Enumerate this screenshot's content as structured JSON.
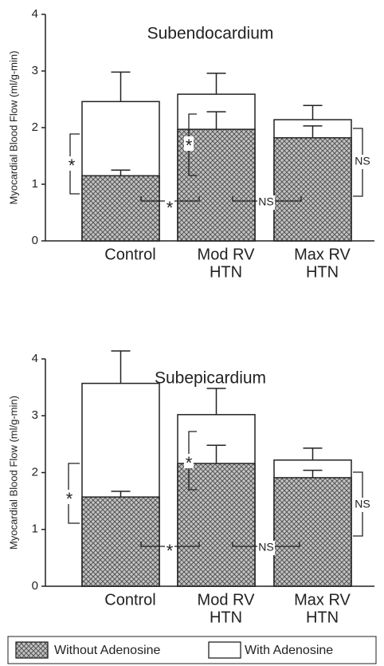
{
  "chart_data": [
    {
      "type": "overlap-bar",
      "title": "Subendocardium",
      "ylabel": "Myocardial Blood Flow (ml/g-min)",
      "categories": [
        [
          "Control"
        ],
        [
          "Mod RV",
          "HTN"
        ],
        [
          "Max RV",
          "HTN"
        ]
      ],
      "series": [
        {
          "name": "With Adenosine",
          "color": "#ffffff",
          "values": [
            2.46,
            2.59,
            2.14
          ],
          "errors": [
            0.52,
            0.37,
            0.25
          ]
        },
        {
          "name": "Without Adenosine",
          "color": "crosshatch",
          "values": [
            1.15,
            1.97,
            1.82
          ],
          "errors": [
            0.1,
            0.31,
            0.21
          ]
        }
      ],
      "ylim": [
        0,
        4
      ],
      "yticks": [
        0,
        1,
        2,
        3,
        4
      ],
      "annotations": [
        "*",
        "*",
        "*",
        "NS",
        "NS"
      ]
    },
    {
      "type": "overlap-bar",
      "title": "Subepicardium",
      "ylabel": "Myocardial Blood Flow (ml/g-min)",
      "categories": [
        [
          "Control"
        ],
        [
          "Mod RV",
          "HTN"
        ],
        [
          "Max RV",
          "HTN"
        ]
      ],
      "series": [
        {
          "name": "With Adenosine",
          "color": "#ffffff",
          "values": [
            3.57,
            3.02,
            2.22
          ],
          "errors": [
            0.57,
            0.46,
            0.21
          ]
        },
        {
          "name": "Without Adenosine",
          "color": "crosshatch",
          "values": [
            1.57,
            2.16,
            1.91
          ],
          "errors": [
            0.1,
            0.32,
            0.13
          ]
        }
      ],
      "ylim": [
        0,
        4
      ],
      "yticks": [
        0,
        1,
        2,
        3,
        4
      ],
      "annotations": [
        "*",
        "*",
        "*",
        "NS",
        "NS"
      ]
    }
  ]
}
